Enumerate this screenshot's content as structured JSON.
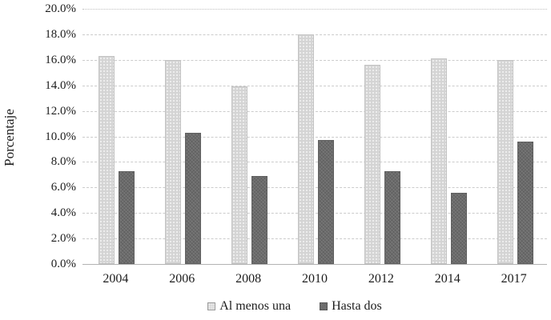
{
  "chart_data": {
    "type": "bar",
    "title": "",
    "xlabel": "",
    "ylabel": "Porcentaje",
    "categories": [
      "2004",
      "2006",
      "2008",
      "2010",
      "2012",
      "2014",
      "2017"
    ],
    "series": [
      {
        "name": "Al menos una",
        "color": "#d4d4d4",
        "values": [
          16.3,
          16.0,
          13.9,
          18.0,
          15.6,
          16.1,
          16.0
        ]
      },
      {
        "name": "Hasta dos",
        "color": "#6b6b6b",
        "values": [
          7.3,
          10.3,
          6.9,
          9.7,
          7.3,
          5.6,
          9.6
        ]
      }
    ],
    "ylim": [
      0,
      20
    ],
    "ytick_step": 2,
    "ytick_labels": [
      "0.0%",
      "2.0%",
      "4.0%",
      "6.0%",
      "8.0%",
      "10.0%",
      "12.0%",
      "14.0%",
      "16.0%",
      "18.0%",
      "20.0%"
    ],
    "grid": "horizontal-dashed",
    "legend_position": "bottom"
  }
}
